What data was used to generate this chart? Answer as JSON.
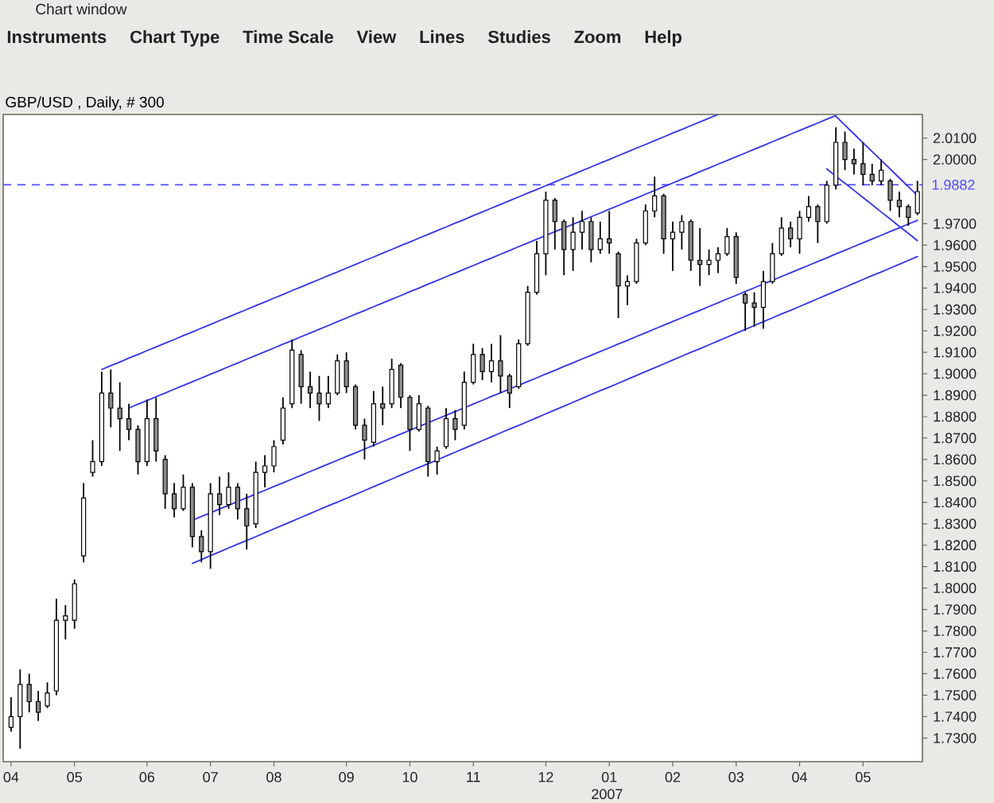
{
  "chart_data": {
    "type": "candlestick",
    "title": "GBP/USD , Daily, # 300",
    "annotations": [
      "Chart window",
      "Instruments",
      "Chart Type",
      "Time Scale",
      "View",
      "Lines",
      "Studies",
      "Zoom",
      "Help",
      "2007"
    ],
    "color": "#000000",
    "categories": [
      "04",
      null,
      null,
      null,
      null,
      null,
      null,
      "05",
      null,
      null,
      null,
      null,
      null,
      null,
      null,
      "06",
      null,
      null,
      null,
      null,
      null,
      null,
      "07",
      null,
      null,
      null,
      null,
      null,
      null,
      "08",
      null,
      null,
      null,
      null,
      null,
      null,
      null,
      "09",
      null,
      null,
      null,
      null,
      null,
      null,
      "10",
      null,
      null,
      null,
      null,
      null,
      null,
      "11",
      null,
      null,
      null,
      null,
      null,
      null,
      null,
      "12",
      null,
      null,
      null,
      null,
      null,
      null,
      "01",
      null,
      null,
      null,
      null,
      null,
      null,
      "02",
      null,
      null,
      null,
      null,
      null,
      null,
      "03",
      null,
      null,
      null,
      null,
      null,
      null,
      "04",
      null,
      null,
      null,
      null,
      null,
      null,
      "05",
      null,
      null,
      null,
      null,
      null,
      null
    ],
    "ohlc": [
      [
        1.735,
        1.749,
        1.733,
        1.74
      ],
      [
        1.74,
        1.762,
        1.725,
        1.755
      ],
      [
        1.755,
        1.76,
        1.742,
        1.747
      ],
      [
        1.747,
        1.752,
        1.738,
        1.742
      ],
      [
        1.745,
        1.756,
        1.744,
        1.751
      ],
      [
        1.752,
        1.795,
        1.75,
        1.785
      ],
      [
        1.785,
        1.792,
        1.776,
        1.787
      ],
      [
        1.785,
        1.804,
        1.781,
        1.802
      ],
      [
        1.815,
        1.849,
        1.812,
        1.842
      ],
      [
        1.854,
        1.869,
        1.852,
        1.859
      ],
      [
        1.859,
        1.901,
        1.857,
        1.891
      ],
      [
        1.891,
        1.902,
        1.875,
        1.884
      ],
      [
        1.884,
        1.896,
        1.864,
        1.879
      ],
      [
        1.879,
        1.886,
        1.869,
        1.874
      ],
      [
        1.874,
        1.876,
        1.853,
        1.859
      ],
      [
        1.859,
        1.888,
        1.857,
        1.879
      ],
      [
        1.879,
        1.889,
        1.859,
        1.864
      ],
      [
        1.86,
        1.862,
        1.837,
        1.844
      ],
      [
        1.844,
        1.849,
        1.833,
        1.837
      ],
      [
        1.837,
        1.853,
        1.836,
        1.847
      ],
      [
        1.847,
        1.849,
        1.819,
        1.824
      ],
      [
        1.824,
        1.827,
        1.812,
        1.817
      ],
      [
        1.817,
        1.849,
        1.809,
        1.844
      ],
      [
        1.844,
        1.852,
        1.834,
        1.839
      ],
      [
        1.839,
        1.854,
        1.837,
        1.847
      ],
      [
        1.847,
        1.849,
        1.832,
        1.837
      ],
      [
        1.837,
        1.844,
        1.818,
        1.829
      ],
      [
        1.83,
        1.859,
        1.828,
        1.854
      ],
      [
        1.854,
        1.862,
        1.847,
        1.857
      ],
      [
        1.857,
        1.869,
        1.854,
        1.866
      ],
      [
        1.869,
        1.889,
        1.867,
        1.884
      ],
      [
        1.886,
        1.916,
        1.884,
        1.911
      ],
      [
        1.909,
        1.911,
        1.886,
        1.894
      ],
      [
        1.894,
        1.901,
        1.884,
        1.891
      ],
      [
        1.891,
        1.899,
        1.878,
        1.886
      ],
      [
        1.886,
        1.899,
        1.884,
        1.891
      ],
      [
        1.891,
        1.909,
        1.89,
        1.906
      ],
      [
        1.906,
        1.91,
        1.891,
        1.894
      ],
      [
        1.894,
        1.895,
        1.874,
        1.876
      ],
      [
        1.876,
        1.879,
        1.86,
        1.869
      ],
      [
        1.868,
        1.892,
        1.866,
        1.886
      ],
      [
        1.886,
        1.894,
        1.876,
        1.884
      ],
      [
        1.886,
        1.907,
        1.884,
        1.902
      ],
      [
        1.904,
        1.905,
        1.884,
        1.889
      ],
      [
        1.889,
        1.89,
        1.864,
        1.874
      ],
      [
        1.874,
        1.89,
        1.873,
        1.886
      ],
      [
        1.884,
        1.885,
        1.852,
        1.859
      ],
      [
        1.859,
        1.866,
        1.853,
        1.864
      ],
      [
        1.866,
        1.884,
        1.865,
        1.879
      ],
      [
        1.879,
        1.883,
        1.869,
        1.874
      ],
      [
        1.876,
        1.901,
        1.874,
        1.896
      ],
      [
        1.896,
        1.914,
        1.895,
        1.909
      ],
      [
        1.909,
        1.912,
        1.897,
        1.901
      ],
      [
        1.901,
        1.914,
        1.896,
        1.906
      ],
      [
        1.906,
        1.918,
        1.891,
        1.899
      ],
      [
        1.899,
        1.9,
        1.884,
        1.891
      ],
      [
        1.894,
        1.916,
        1.893,
        1.914
      ],
      [
        1.914,
        1.941,
        1.913,
        1.938
      ],
      [
        1.938,
        1.962,
        1.937,
        1.956
      ],
      [
        1.956,
        1.985,
        1.946,
        1.981
      ],
      [
        1.981,
        1.982,
        1.958,
        1.971
      ],
      [
        1.971,
        1.972,
        1.946,
        1.958
      ],
      [
        1.958,
        1.973,
        1.948,
        1.966
      ],
      [
        1.966,
        1.976,
        1.958,
        1.971
      ],
      [
        1.971,
        1.973,
        1.952,
        1.958
      ],
      [
        1.958,
        1.971,
        1.956,
        1.963
      ],
      [
        1.963,
        1.976,
        1.956,
        1.961
      ],
      [
        1.956,
        1.957,
        1.926,
        1.941
      ],
      [
        1.941,
        1.946,
        1.932,
        1.943
      ],
      [
        1.943,
        1.963,
        1.942,
        1.961
      ],
      [
        1.961,
        1.979,
        1.96,
        1.976
      ],
      [
        1.976,
        1.992,
        1.973,
        1.983
      ],
      [
        1.983,
        1.984,
        1.956,
        1.963
      ],
      [
        1.963,
        1.971,
        1.948,
        1.966
      ],
      [
        1.966,
        1.974,
        1.958,
        1.971
      ],
      [
        1.971,
        1.972,
        1.948,
        1.953
      ],
      [
        1.953,
        1.968,
        1.941,
        1.951
      ],
      [
        1.951,
        1.958,
        1.946,
        1.953
      ],
      [
        1.953,
        1.959,
        1.947,
        1.956
      ],
      [
        1.956,
        1.968,
        1.955,
        1.964
      ],
      [
        1.964,
        1.966,
        1.942,
        1.945
      ],
      [
        1.937,
        1.938,
        1.92,
        1.933
      ],
      [
        1.933,
        1.938,
        1.922,
        1.931
      ],
      [
        1.931,
        1.948,
        1.921,
        1.943
      ],
      [
        1.943,
        1.961,
        1.942,
        1.956
      ],
      [
        1.956,
        1.973,
        1.955,
        1.968
      ],
      [
        1.968,
        1.971,
        1.959,
        1.963
      ],
      [
        1.963,
        1.976,
        1.956,
        1.973
      ],
      [
        1.973,
        1.983,
        1.971,
        1.978
      ],
      [
        1.978,
        1.979,
        1.961,
        1.971
      ],
      [
        1.971,
        1.99,
        1.97,
        1.988
      ],
      [
        1.988,
        2.015,
        1.986,
        2.008
      ],
      [
        2.008,
        2.013,
        1.995,
        2.0
      ],
      [
        2.0,
        2.005,
        1.993,
        1.998
      ],
      [
        1.998,
        2.008,
        1.988,
        1.993
      ],
      [
        1.993,
        1.998,
        1.988,
        1.99
      ],
      [
        1.99,
        2.0,
        1.988,
        1.995
      ],
      [
        1.99,
        1.991,
        1.976,
        1.981
      ],
      [
        1.981,
        1.985,
        1.973,
        1.978
      ],
      [
        1.978,
        1.979,
        1.969,
        1.973
      ],
      [
        1.975,
        1.99,
        1.974,
        1.985
      ]
    ],
    "series": [
      {
        "type": "line",
        "color": "#3333ee",
        "values": [
          null,
          null,
          null,
          null,
          null,
          null,
          null,
          null,
          null,
          null,
          1.902,
          1.9038,
          1.9055,
          1.9073,
          1.909,
          1.9108,
          1.9125,
          1.9143,
          1.916,
          1.9178,
          1.9195,
          1.9213,
          1.923,
          1.9248,
          1.9265,
          1.9283,
          1.93,
          1.9318,
          1.9335,
          1.9353,
          1.937,
          1.9388,
          1.9405,
          1.9423,
          1.944,
          1.9458,
          1.9475,
          1.9493,
          1.951,
          1.9528,
          1.9545,
          1.9563,
          1.958,
          1.9598,
          1.9615,
          1.9633,
          1.965,
          1.9668,
          1.9685,
          1.9703,
          1.972,
          1.9738,
          1.9755,
          1.9773,
          1.979,
          1.9808,
          1.9825,
          1.9843,
          1.986,
          1.9878,
          1.9895,
          1.9913,
          1.993,
          1.9948,
          1.9965,
          1.9983,
          2.0,
          2.0018,
          2.0035,
          2.0053,
          2.007,
          2.0088,
          2.0105,
          2.0123,
          2.014,
          2.0158,
          2.0175,
          2.0193,
          2.021,
          null,
          null,
          null,
          null,
          null,
          null,
          null,
          null,
          null,
          null,
          null,
          null,
          null,
          null,
          null,
          null,
          null,
          null,
          null,
          null,
          null,
          null
        ]
      },
      {
        "type": "line",
        "color": "#3333ee",
        "values": [
          null,
          null,
          null,
          null,
          null,
          null,
          null,
          null,
          null,
          null,
          null,
          null,
          null,
          1.884,
          1.8858,
          1.8875,
          1.8893,
          1.891,
          1.8928,
          1.8945,
          1.8963,
          1.898,
          1.8998,
          1.9015,
          1.9033,
          1.905,
          1.9068,
          1.9085,
          1.9103,
          1.912,
          1.9138,
          1.9155,
          1.9173,
          1.919,
          1.9208,
          1.9225,
          1.9243,
          1.926,
          1.9278,
          1.9295,
          1.9313,
          1.933,
          1.9348,
          1.9365,
          1.9383,
          1.94,
          1.9418,
          1.9435,
          1.9453,
          1.947,
          1.9488,
          1.9505,
          1.9523,
          1.954,
          1.9558,
          1.9575,
          1.9593,
          1.961,
          1.9628,
          1.9645,
          1.9663,
          1.968,
          1.9698,
          1.9715,
          1.9733,
          1.975,
          1.9768,
          1.9785,
          1.9803,
          1.982,
          1.9838,
          1.9855,
          1.9873,
          1.989,
          1.9908,
          1.9925,
          1.9943,
          1.996,
          1.9978,
          1.9995,
          2.0013,
          2.003,
          2.0048,
          2.0065,
          2.0083,
          2.01,
          2.0118,
          2.0135,
          2.0153,
          2.017,
          2.0188,
          2.0205,
          null,
          null,
          null,
          null,
          null,
          null,
          null,
          null,
          null
        ]
      },
      {
        "type": "line",
        "color": "#3333ee",
        "values": [
          null,
          null,
          null,
          null,
          null,
          null,
          null,
          null,
          null,
          null,
          null,
          null,
          null,
          null,
          null,
          null,
          null,
          null,
          null,
          null,
          1.8316,
          1.8334,
          1.8351,
          1.8369,
          1.8386,
          1.8404,
          1.8421,
          1.8439,
          1.8456,
          1.8474,
          1.8491,
          1.8509,
          1.8526,
          1.8544,
          1.8561,
          1.8579,
          1.8596,
          1.8614,
          1.8631,
          1.8649,
          1.8666,
          1.8684,
          1.8701,
          1.8719,
          1.8736,
          1.8754,
          1.8771,
          1.8789,
          1.8806,
          1.8824,
          1.8841,
          1.8859,
          1.8876,
          1.8894,
          1.8911,
          1.8929,
          1.8946,
          1.8964,
          1.8981,
          1.8999,
          1.9016,
          1.9034,
          1.9051,
          1.9069,
          1.9086,
          1.9104,
          1.9121,
          1.9139,
          1.9156,
          1.9174,
          1.9191,
          1.9209,
          1.9226,
          1.9244,
          1.9261,
          1.9279,
          1.9296,
          1.9314,
          1.9331,
          1.9349,
          1.9366,
          1.9384,
          1.9401,
          1.9419,
          1.9436,
          1.9454,
          1.9471,
          1.9489,
          1.9506,
          1.9524,
          1.9541,
          1.9559,
          1.9576,
          1.9594,
          1.9611,
          1.9629,
          1.9646,
          1.9664,
          1.9681,
          1.9699,
          1.9716
        ]
      },
      {
        "type": "line",
        "color": "#3333ee",
        "values": [
          null,
          null,
          null,
          null,
          null,
          null,
          null,
          null,
          null,
          null,
          null,
          null,
          null,
          null,
          null,
          null,
          null,
          null,
          null,
          null,
          1.8115,
          1.8133,
          1.8151,
          1.8169,
          1.8187,
          1.8205,
          1.8222,
          1.824,
          1.8258,
          1.8276,
          1.8294,
          1.8312,
          1.833,
          1.8348,
          1.8366,
          1.8384,
          1.8401,
          1.8419,
          1.8437,
          1.8455,
          1.8473,
          1.8491,
          1.8509,
          1.8527,
          1.8545,
          1.8563,
          1.858,
          1.8598,
          1.8616,
          1.8634,
          1.8652,
          1.867,
          1.8688,
          1.8706,
          1.8724,
          1.8742,
          1.8759,
          1.8777,
          1.8795,
          1.8813,
          1.8831,
          1.8849,
          1.8867,
          1.8885,
          1.8903,
          1.8921,
          1.8938,
          1.8956,
          1.8974,
          1.8992,
          1.901,
          1.9028,
          1.9046,
          1.9064,
          1.9082,
          1.91,
          1.9117,
          1.9135,
          1.9153,
          1.9171,
          1.9189,
          1.9207,
          1.9225,
          1.9243,
          1.9261,
          1.9279,
          1.9296,
          1.9314,
          1.9332,
          1.935,
          1.9368,
          1.9386,
          1.9404,
          1.9422,
          1.944,
          1.9458,
          1.9475,
          1.9493,
          1.9511,
          1.9529,
          1.9547
        ]
      },
      {
        "type": "line",
        "color": "#3333ee",
        "values": [
          null,
          null,
          null,
          null,
          null,
          null,
          null,
          null,
          null,
          null,
          null,
          null,
          null,
          null,
          null,
          null,
          null,
          null,
          null,
          null,
          null,
          null,
          null,
          null,
          null,
          null,
          null,
          null,
          null,
          null,
          null,
          null,
          null,
          null,
          null,
          null,
          null,
          null,
          null,
          null,
          null,
          null,
          null,
          null,
          null,
          null,
          null,
          null,
          null,
          null,
          null,
          null,
          null,
          null,
          null,
          null,
          null,
          null,
          null,
          null,
          null,
          null,
          null,
          null,
          null,
          null,
          null,
          null,
          null,
          null,
          null,
          null,
          null,
          null,
          null,
          null,
          null,
          null,
          null,
          null,
          null,
          null,
          null,
          null,
          null,
          null,
          null,
          null,
          null,
          null,
          null,
          2.0201,
          2.016,
          2.0119,
          2.0078,
          2.0037,
          1.9996,
          1.9955,
          1.9914,
          1.9873,
          1.9832
        ]
      },
      {
        "type": "line",
        "color": "#3333ee",
        "values": [
          null,
          null,
          null,
          null,
          null,
          null,
          null,
          null,
          null,
          null,
          null,
          null,
          null,
          null,
          null,
          null,
          null,
          null,
          null,
          null,
          null,
          null,
          null,
          null,
          null,
          null,
          null,
          null,
          null,
          null,
          null,
          null,
          null,
          null,
          null,
          null,
          null,
          null,
          null,
          null,
          null,
          null,
          null,
          null,
          null,
          null,
          null,
          null,
          null,
          null,
          null,
          null,
          null,
          null,
          null,
          null,
          null,
          null,
          null,
          null,
          null,
          null,
          null,
          null,
          null,
          null,
          null,
          null,
          null,
          null,
          null,
          null,
          null,
          null,
          null,
          null,
          null,
          null,
          null,
          null,
          null,
          null,
          null,
          null,
          null,
          null,
          null,
          null,
          null,
          null,
          1.9956,
          1.9922,
          1.9889,
          1.9856,
          1.9822,
          1.9789,
          1.9755,
          1.9722,
          1.9688,
          1.9655,
          1.9621
        ]
      }
    ],
    "ref_lines": [
      {
        "axis": "y",
        "value": 1.9882,
        "label": "1.9882",
        "color": "#4d4dff",
        "line_style": "dashed"
      }
    ],
    "ylim": [
      1.719,
      2.021
    ],
    "yticks": [
      {
        "value": 1.73,
        "label": "1.7300"
      },
      {
        "value": 1.74,
        "label": "1.7400"
      },
      {
        "value": 1.75,
        "label": "1.7500"
      },
      {
        "value": 1.76,
        "label": "1.7600"
      },
      {
        "value": 1.77,
        "label": "1.7700"
      },
      {
        "value": 1.78,
        "label": "1.7800"
      },
      {
        "value": 1.79,
        "label": "1.7900"
      },
      {
        "value": 1.8,
        "label": "1.8000"
      },
      {
        "value": 1.81,
        "label": "1.8100"
      },
      {
        "value": 1.82,
        "label": "1.8200"
      },
      {
        "value": 1.83,
        "label": "1.8300"
      },
      {
        "value": 1.84,
        "label": "1.8400"
      },
      {
        "value": 1.85,
        "label": "1.8500"
      },
      {
        "value": 1.86,
        "label": "1.8600"
      },
      {
        "value": 1.87,
        "label": "1.8700"
      },
      {
        "value": 1.88,
        "label": "1.8800"
      },
      {
        "value": 1.89,
        "label": "1.8900"
      },
      {
        "value": 1.9,
        "label": "1.9000"
      },
      {
        "value": 1.91,
        "label": "1.9100"
      },
      {
        "value": 1.92,
        "label": "1.9200"
      },
      {
        "value": 1.93,
        "label": "1.9300"
      },
      {
        "value": 1.94,
        "label": "1.9400"
      },
      {
        "value": 1.95,
        "label": "1.9500"
      },
      {
        "value": 1.96,
        "label": "1.9600"
      },
      {
        "value": 1.97,
        "label": "1.9700"
      },
      {
        "value": 2.0,
        "label": "2.0000"
      },
      {
        "value": 2.01,
        "label": "2.0100"
      }
    ]
  }
}
